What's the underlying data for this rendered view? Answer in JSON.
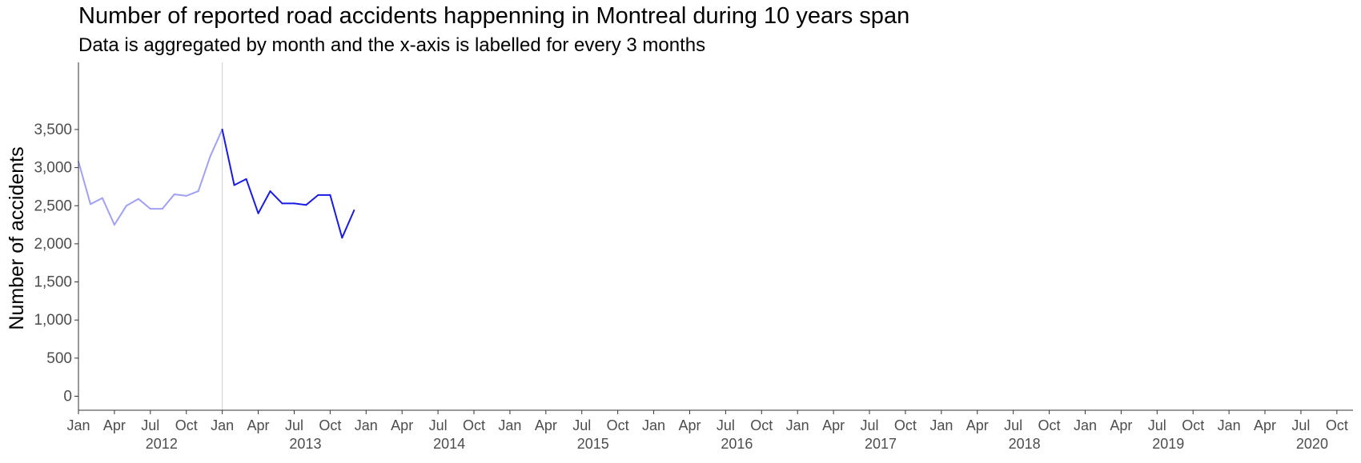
{
  "chart_data": {
    "type": "line",
    "title": "Number of reported road accidents happenning in Montreal during 10 years span",
    "subtitle": "Data is aggregated by month and the x-axis is labelled for every 3 months",
    "xlabel": "",
    "ylabel": "Number of accidents",
    "ylim": [
      0,
      3900
    ],
    "xlim": [
      "2012-01",
      "2020-12"
    ],
    "y_ticks": [
      {
        "value": 0,
        "label": "0"
      },
      {
        "value": 500,
        "label": "500"
      },
      {
        "value": 1000,
        "label": "1,000"
      },
      {
        "value": 1500,
        "label": "1,500"
      },
      {
        "value": 2000,
        "label": "2,000"
      },
      {
        "value": 2500,
        "label": "2,500"
      },
      {
        "value": 3000,
        "label": "3,000"
      },
      {
        "value": 3500,
        "label": "3,500"
      }
    ],
    "x_month_labels": [
      "Jan",
      "Apr",
      "Jul",
      "Oct"
    ],
    "x_year_labels": [
      "2012",
      "2013",
      "2014",
      "2015",
      "2016",
      "2017",
      "2018",
      "2019",
      "2020"
    ],
    "reference_line": "2013-01",
    "series": [
      {
        "color": "#a0a0f5",
        "x": [
          "2012-01",
          "2012-02",
          "2012-03",
          "2012-04",
          "2012-05",
          "2012-06",
          "2012-07",
          "2012-08",
          "2012-09",
          "2012-10",
          "2012-11",
          "2012-12",
          "2013-01"
        ],
        "values": [
          3080,
          2520,
          2600,
          2250,
          2500,
          2590,
          2460,
          2460,
          2650,
          2630,
          2690,
          3150,
          3500
        ]
      },
      {
        "color": "#1a1ae6",
        "x": [
          "2013-01",
          "2013-02",
          "2013-03",
          "2013-04",
          "2013-05",
          "2013-06",
          "2013-07",
          "2013-08",
          "2013-09",
          "2013-10",
          "2013-11",
          "2013-12"
        ],
        "values": [
          3500,
          2770,
          2850,
          2400,
          2690,
          2530,
          2530,
          2510,
          2640,
          2640,
          2080,
          2440
        ]
      }
    ]
  }
}
